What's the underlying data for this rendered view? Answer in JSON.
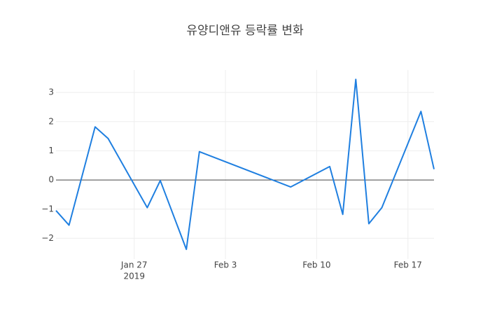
{
  "chart_data": {
    "type": "line",
    "title": "유양디앤유 등락률 변화",
    "x": [
      "2019-01-21",
      "2019-01-22",
      "2019-01-24",
      "2019-01-25",
      "2019-01-28",
      "2019-01-29",
      "2019-01-31",
      "2019-02-01",
      "2019-02-08",
      "2019-02-11",
      "2019-02-12",
      "2019-02-13",
      "2019-02-14",
      "2019-02-15",
      "2019-02-18",
      "2019-02-19"
    ],
    "series": [
      {
        "color": "#1f7fe0",
        "values": [
          -1.05,
          -1.55,
          1.82,
          1.42,
          -0.95,
          -0.02,
          -2.38,
          0.97,
          -0.24,
          0.46,
          -1.18,
          3.45,
          -1.5,
          -0.95,
          2.35,
          0.37
        ]
      }
    ],
    "xlim": [
      "2019-01-21",
      "2019-02-19"
    ],
    "xticks": [
      {
        "value": "2019-01-27",
        "label": "Jan 27"
      },
      {
        "value": "2019-02-03",
        "label": "Feb 3"
      },
      {
        "value": "2019-02-10",
        "label": "Feb 10"
      },
      {
        "value": "2019-02-17",
        "label": "Feb 17"
      }
    ],
    "x_year_label": "2019",
    "ylim": [
      -2.71,
      3.77
    ],
    "yticks": [
      {
        "value": -2,
        "label": "−2"
      },
      {
        "value": -1,
        "label": "−1"
      },
      0,
      1,
      2,
      3
    ],
    "grid": true
  }
}
